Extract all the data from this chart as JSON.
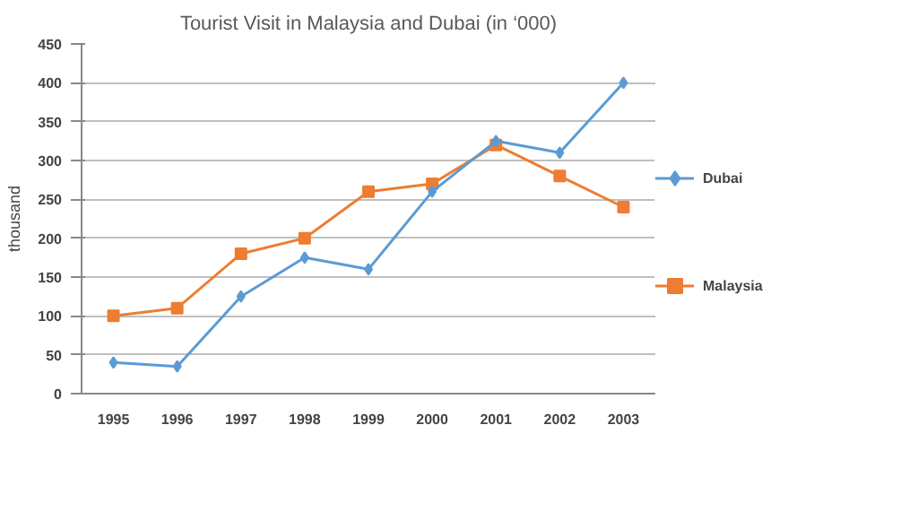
{
  "chart_data": {
    "type": "line",
    "title": "Tourist Visit in Malaysia and Dubai (in ‘000)",
    "ylabel": "thousand",
    "categories": [
      "1995",
      "1996",
      "1997",
      "1998",
      "1999",
      "2000",
      "2001",
      "2002",
      "2003"
    ],
    "series": [
      {
        "name": "Dubai",
        "color": "#5b9bd5",
        "marker": "diamond",
        "values": [
          40,
          35,
          125,
          175,
          160,
          260,
          325,
          310,
          400
        ]
      },
      {
        "name": "Malaysia",
        "color": "#ed7d31",
        "marker": "square",
        "values": [
          100,
          110,
          180,
          200,
          260,
          270,
          320,
          280,
          240
        ]
      }
    ],
    "ylim": [
      0,
      450
    ],
    "yticks": [
      0,
      50,
      100,
      150,
      200,
      250,
      300,
      350,
      400,
      450
    ],
    "grid": "y",
    "legend": "right"
  }
}
